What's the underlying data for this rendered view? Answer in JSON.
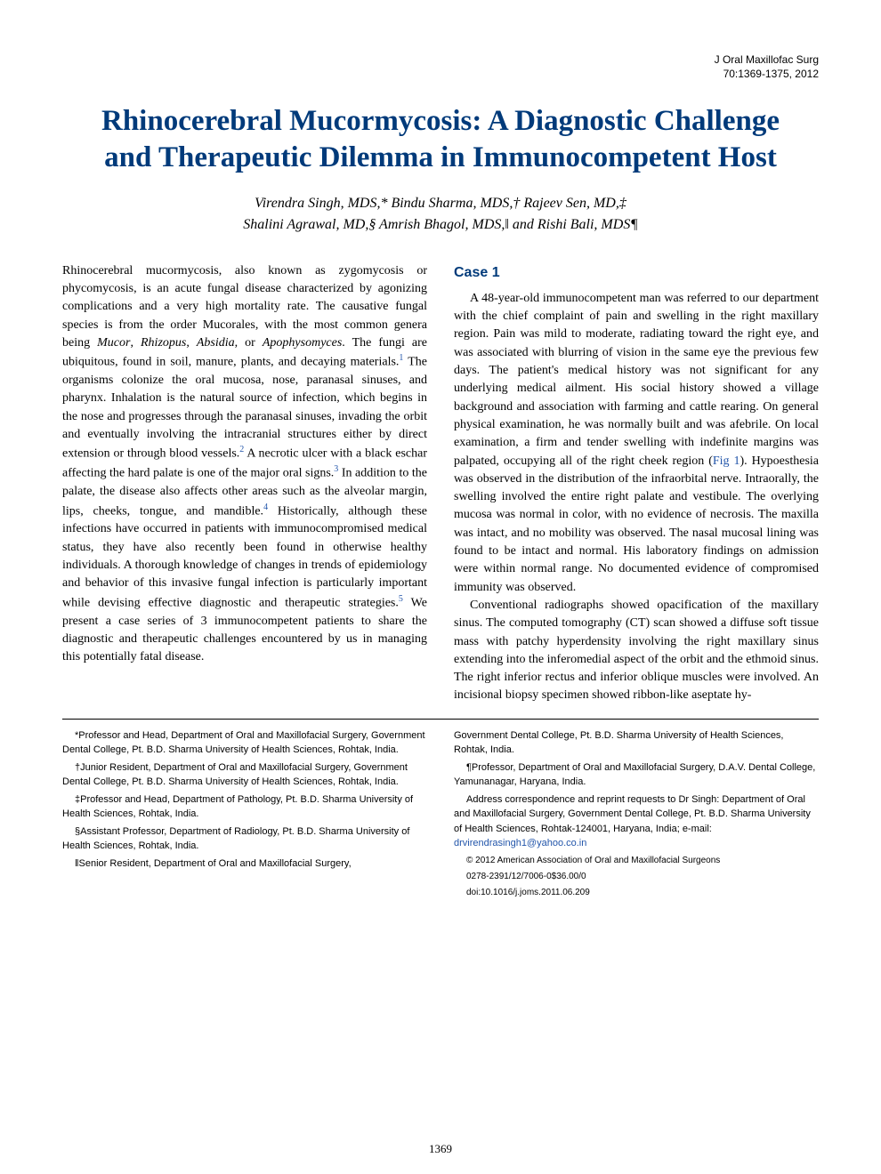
{
  "journal": {
    "name": "J Oral Maxillofac Surg",
    "citation": "70:1369-1375, 2012"
  },
  "title": "Rhinocerebral Mucormycosis: A Diagnostic Challenge and Therapeutic Dilemma in Immunocompetent Host",
  "authors_line1": "Virendra Singh, MDS,* Bindu Sharma, MDS,† Rajeev Sen, MD,‡",
  "authors_line2": "Shalini Agrawal, MD,§ Amrish Bhagol, MDS,‖ and Rishi Bali, MDS¶",
  "intro_text": "Rhinocerebral mucormycosis, also known as zygomycosis or phycomycosis, is an acute fungal disease characterized by agonizing complications and a very high mortality rate. The causative fungal species is from the order Mucorales, with the most common genera being ",
  "intro_italic1": "Mucor",
  "intro_sep1": ", ",
  "intro_italic2": "Rhizopus",
  "intro_sep2": ", ",
  "intro_italic3": "Absidia",
  "intro_sep3": ", or ",
  "intro_italic4": "Apophysomyces",
  "intro_cont1": ". The fungi are ubiquitous, found in soil, manure, plants, and decaying materials.",
  "intro_ref1": "1",
  "intro_cont2": " The organisms colonize the oral mucosa, nose, paranasal sinuses, and pharynx. Inhalation is the natural source of infection, which begins in the nose and progresses through the paranasal sinuses, invading the orbit and eventually involving the intracranial structures either by direct extension or through blood vessels.",
  "intro_ref2": "2",
  "intro_cont3": " A necrotic ulcer with a black eschar affecting the hard palate is one of the major oral signs.",
  "intro_ref3": "3",
  "intro_cont4": " In addition to the palate, the disease also affects other areas such as the alveolar margin, lips, cheeks, tongue, and mandible.",
  "intro_ref4": "4",
  "intro_cont5": " Historically, although these infections have occurred in patients with immunocompromised medical status, they have also recently been found in otherwise healthy individuals. A thorough knowledge of changes in trends of epidemiology and behavior of this invasive fungal infection is particularly important while devising effective diagnostic and therapeutic strategies.",
  "intro_ref5": "5",
  "intro_cont6": " We present a case series of 3 immunocompetent patients to share the diagnostic and therapeutic challenges encountered by us in managing this potentially fatal disease.",
  "case1_heading": "Case 1",
  "case1_para1_a": "A 48-year-old immunocompetent man was referred to our department with the chief complaint of pain and swelling in the right maxillary region. Pain was mild to moderate, radiating toward the right eye, and was associated with blurring of vision in the same eye the previous few days. The patient's medical history was not significant for any underlying medical ailment. His social history showed a village background and association with farming and cattle rearing. On general physical examination, he was normally built and was afebrile. On local examination, a firm and tender swelling with indefinite margins was palpated, occupying all of the right cheek region (",
  "case1_fig_ref": "Fig 1",
  "case1_para1_b": "). Hypoesthesia was observed in the distribution of the infraorbital nerve. Intraorally, the swelling involved the entire right palate and vestibule. The overlying mucosa was normal in color, with no evidence of necrosis. The maxilla was intact, and no mobility was observed. The nasal mucosal lining was found to be intact and normal. His laboratory findings on admission were within normal range. No documented evidence of compromised immunity was observed.",
  "case1_para2": "Conventional radiographs showed opacification of the maxillary sinus. The computed tomography (CT) scan showed a diffuse soft tissue mass with patchy hyperdensity involving the right maxillary sinus extending into the inferomedial aspect of the orbit and the ethmoid sinus. The right inferior rectus and inferior oblique muscles were involved. An incisional biopsy specimen showed ribbon-like aseptate hy-",
  "affiliations": {
    "left": [
      "*Professor and Head, Department of Oral and Maxillofacial Surgery, Government Dental College, Pt. B.D. Sharma University of Health Sciences, Rohtak, India.",
      "†Junior Resident, Department of Oral and Maxillofacial Surgery, Government Dental College, Pt. B.D. Sharma University of Health Sciences, Rohtak, India.",
      "‡Professor and Head, Department of Pathology, Pt. B.D. Sharma University of Health Sciences, Rohtak, India.",
      "§Assistant Professor, Department of Radiology, Pt. B.D. Sharma University of Health Sciences, Rohtak, India.",
      "‖Senior Resident, Department of Oral and Maxillofacial Surgery,"
    ],
    "right": [
      "Government Dental College, Pt. B.D. Sharma University of Health Sciences, Rohtak, India.",
      "¶Professor, Department of Oral and Maxillofacial Surgery, D.A.V. Dental College, Yamunanagar, Haryana, India."
    ],
    "correspondence_a": "Address correspondence and reprint requests to Dr Singh: Department of Oral and Maxillofacial Surgery, Government Dental College, Pt. B.D. Sharma University of Health Sciences, Rohtak-124001, Haryana, India; e-mail: ",
    "email": "drvirendrasingh1@yahoo.co.in",
    "copyright": "© 2012 American Association of Oral and Maxillofacial Surgeons",
    "issn": "0278-2391/12/7006-0$36.00/0",
    "doi": "doi:10.1016/j.joms.2011.06.209"
  },
  "page_number": "1369",
  "colors": {
    "title_blue": "#003a7a",
    "link_blue": "#2255aa",
    "text_black": "#000000",
    "background": "#ffffff"
  }
}
